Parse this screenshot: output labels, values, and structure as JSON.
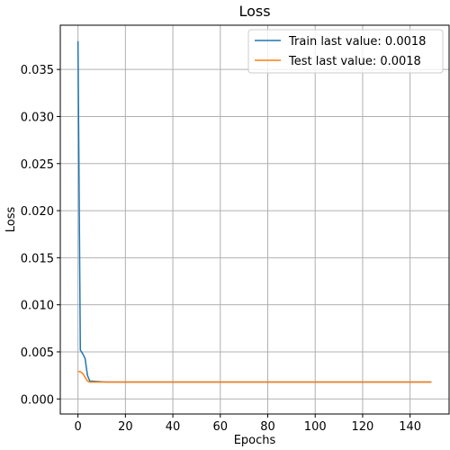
{
  "chart_data": {
    "type": "line",
    "title": "Loss",
    "xlabel": "Epochs",
    "ylabel": "Loss",
    "xlim": [
      -7.45,
      156.45
    ],
    "ylim": [
      -0.0016,
      0.0397
    ],
    "xticks": [
      0,
      20,
      40,
      60,
      80,
      100,
      120,
      140
    ],
    "yticks": [
      0.0,
      0.005,
      0.01,
      0.015,
      0.02,
      0.025,
      0.03,
      0.035
    ],
    "ytick_labels": [
      "0.000",
      "0.005",
      "0.010",
      "0.015",
      "0.020",
      "0.025",
      "0.030",
      "0.035"
    ],
    "grid": true,
    "legend_position": "top-right",
    "series": [
      {
        "name": "Train last value: 0.0018",
        "color": "#1f77b4",
        "points": [
          [
            0,
            0.038
          ],
          [
            1,
            0.0052
          ],
          [
            2,
            0.0048
          ],
          [
            3,
            0.0043
          ],
          [
            4,
            0.0025
          ],
          [
            5,
            0.0019
          ],
          [
            8,
            0.00185
          ],
          [
            12,
            0.0018
          ],
          [
            20,
            0.0018
          ],
          [
            149,
            0.0018
          ]
        ]
      },
      {
        "name": "Test last value: 0.0018",
        "color": "#ff7f0e",
        "points": [
          [
            0,
            0.0029
          ],
          [
            1,
            0.0029
          ],
          [
            2,
            0.0027
          ],
          [
            3,
            0.0023
          ],
          [
            4,
            0.0019
          ],
          [
            5,
            0.0018
          ],
          [
            149,
            0.0018
          ]
        ]
      }
    ]
  }
}
